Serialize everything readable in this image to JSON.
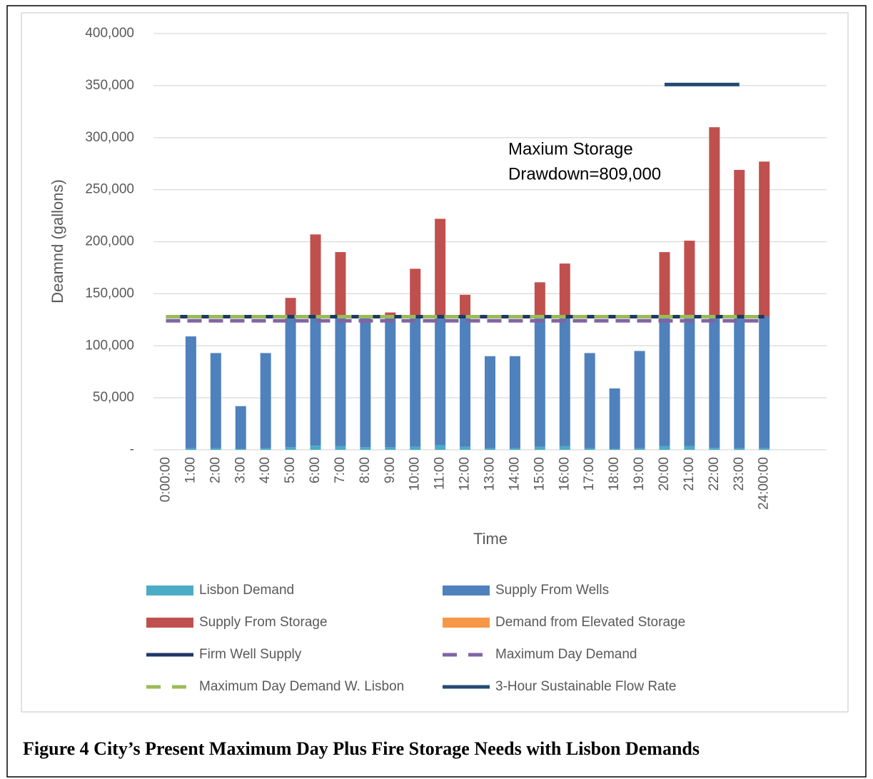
{
  "figure_caption": "Figure 4  City’s Present Maximum Day Plus Fire Storage Needs with Lisbon Demands",
  "chart_data": {
    "type": "bar",
    "stacked": true,
    "x_label": "Time",
    "y_label": "Deamnd (gallons)",
    "annotation": [
      "Maxium Storage",
      "Drawdown=809,000"
    ],
    "categories": [
      "0:00:00",
      "1:00",
      "2:00",
      "3:00",
      "4:00",
      "5:00",
      "6:00",
      "7:00",
      "8:00",
      "9:00",
      "10:00",
      "11:00",
      "12:00",
      "13:00",
      "14:00",
      "15:00",
      "16:00",
      "17:00",
      "18:00",
      "19:00",
      "20:00",
      "21:00",
      "22:00",
      "23:00",
      "24:00:00",
      null,
      null
    ],
    "ylim": [
      0,
      400000
    ],
    "yticks": [
      {
        "value": 0,
        "label": "-"
      },
      {
        "value": 50000,
        "label": "50,000"
      },
      {
        "value": 100000,
        "label": "100,000"
      },
      {
        "value": 150000,
        "label": "150,000"
      },
      {
        "value": 200000,
        "label": "200,000"
      },
      {
        "value": 250000,
        "label": "250,000"
      },
      {
        "value": 300000,
        "label": "300,000"
      },
      {
        "value": 350000,
        "label": "350,000"
      },
      {
        "value": 400000,
        "label": "400,000"
      }
    ],
    "grid": true,
    "legend": "bottom",
    "series": [
      {
        "name": "Lisbon Demand",
        "color": "#4bacc6",
        "values": [
          0,
          1500,
          1500,
          1000,
          1500,
          2500,
          4000,
          3500,
          2500,
          2500,
          3000,
          4500,
          3000,
          1500,
          1500,
          3000,
          3500,
          1500,
          1000,
          1500,
          3500,
          3500,
          2000,
          1500,
          1500,
          null,
          null
        ]
      },
      {
        "name": "Supply From Wells",
        "color": "#4f81bd",
        "values": [
          0,
          107500,
          91500,
          41000,
          91500,
          125500,
          124000,
          124500,
          125500,
          125500,
          125000,
          123500,
          125000,
          88500,
          88500,
          125000,
          124500,
          91500,
          58000,
          93500,
          124500,
          124500,
          126000,
          126500,
          126500,
          null,
          null
        ]
      },
      {
        "name": "Supply From Storage",
        "color": "#c0504d",
        "values": [
          0,
          0,
          0,
          0,
          0,
          18000,
          79000,
          62000,
          0,
          4000,
          46000,
          94000,
          21000,
          0,
          0,
          33000,
          51000,
          0,
          0,
          0,
          62000,
          73000,
          182000,
          141000,
          149000,
          null,
          null
        ]
      },
      {
        "name": "Demand from Elevated Storage",
        "color": "#f79646",
        "values": [
          0,
          0,
          0,
          0,
          0,
          0,
          0,
          0,
          0,
          0,
          0,
          0,
          0,
          0,
          0,
          0,
          0,
          0,
          0,
          0,
          0,
          0,
          0,
          0,
          0,
          null,
          null
        ]
      },
      {
        "name": "Firm Well Supply",
        "type": "line",
        "color": "#1f3864",
        "values": [
          128000,
          128000,
          128000,
          128000,
          128000,
          128000,
          128000,
          128000,
          128000,
          128000,
          128000,
          128000,
          128000,
          128000,
          128000,
          128000,
          128000,
          128000,
          128000,
          128000,
          128000,
          128000,
          128000,
          128000,
          128000,
          null,
          null
        ]
      },
      {
        "name": "Maximum Day Demand",
        "type": "line",
        "dashed": true,
        "color": "#8064a2",
        "values": [
          124000,
          124000,
          124000,
          124000,
          124000,
          124000,
          124000,
          124000,
          124000,
          124000,
          124000,
          124000,
          124000,
          124000,
          124000,
          124000,
          124000,
          124000,
          124000,
          124000,
          124000,
          124000,
          124000,
          124000,
          124000,
          null,
          null
        ]
      },
      {
        "name": "Maximum Day Demand W. Lisbon",
        "type": "line",
        "dashed": true,
        "color": "#9bbb59",
        "values": [
          128000,
          128000,
          128000,
          128000,
          128000,
          128000,
          128000,
          128000,
          128000,
          128000,
          128000,
          128000,
          128000,
          128000,
          128000,
          128000,
          128000,
          128000,
          128000,
          128000,
          128000,
          128000,
          128000,
          128000,
          128000,
          null,
          null
        ]
      },
      {
        "name": "3-Hour Sustainable Flow Rate",
        "type": "line",
        "color": "#254b74",
        "values": [
          null,
          null,
          null,
          null,
          null,
          null,
          null,
          null,
          null,
          null,
          null,
          null,
          null,
          null,
          null,
          null,
          null,
          null,
          null,
          null,
          351000,
          351000,
          351000,
          351000,
          null,
          null,
          null
        ]
      }
    ]
  }
}
